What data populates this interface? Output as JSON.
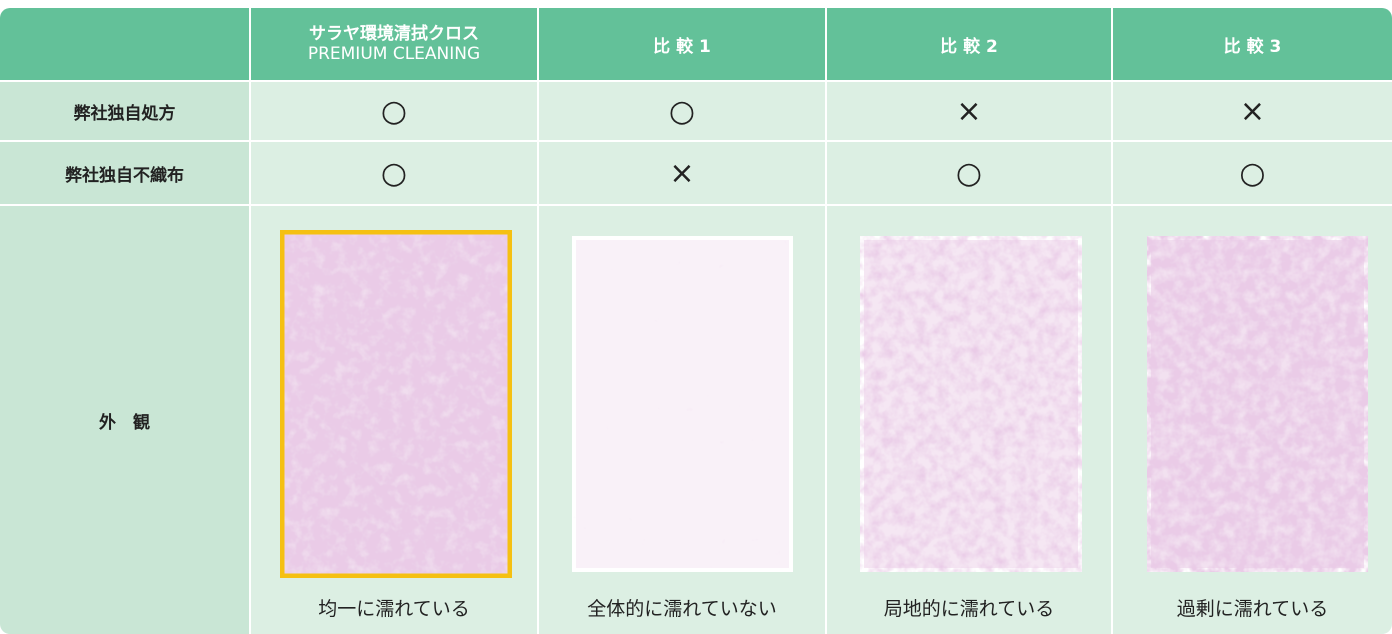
{
  "header": {
    "product": {
      "line1": "サラヤ環境清拭クロス",
      "line2": "PREMIUM CLEANING"
    },
    "comparisons": [
      "比 較 1",
      "比 較 2",
      "比 較 3"
    ]
  },
  "rows": [
    {
      "label": "弊社独自処方",
      "marks": [
        "○",
        "○",
        "×",
        "×"
      ]
    },
    {
      "label": "弊社独自不織布",
      "marks": [
        "○",
        "×",
        "○",
        "○"
      ]
    }
  ],
  "appearance": {
    "label": "外　観",
    "captions": [
      "均一に濡れている",
      "全体的に濡れていない",
      "局地的に濡れている",
      "過剰に濡れている"
    ]
  }
}
